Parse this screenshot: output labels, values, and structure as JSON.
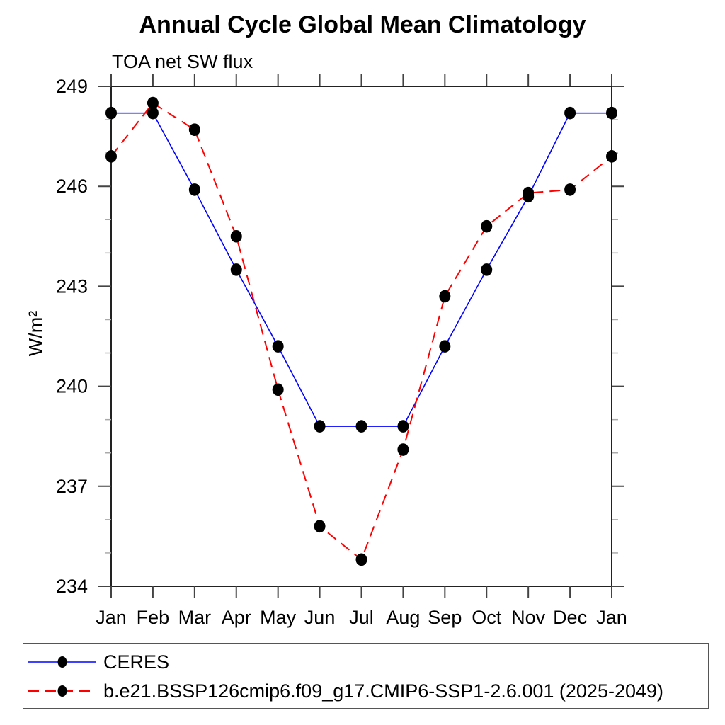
{
  "chart_data": {
    "type": "line",
    "title": "Annual Cycle Global Mean Climatology",
    "subtitle": "TOA net SW flux",
    "ylabel": "W/m²",
    "xlabel": "",
    "categories": [
      "Jan",
      "Feb",
      "Mar",
      "Apr",
      "May",
      "Jun",
      "Jul",
      "Aug",
      "Sep",
      "Oct",
      "Nov",
      "Dec",
      "Jan"
    ],
    "y_ticks": [
      234,
      237,
      240,
      243,
      246,
      249
    ],
    "y_minor_step": 1,
    "ylim": [
      234,
      249
    ],
    "grid": "off",
    "legend_position": "bottom-left-box",
    "series": [
      {
        "name": "CERES",
        "color": "#0000ff",
        "line_style": "solid",
        "marker": "filled-circle",
        "marker_color": "#000000",
        "values": [
          248.2,
          248.2,
          245.9,
          243.5,
          241.2,
          238.8,
          238.8,
          238.8,
          241.2,
          243.5,
          245.7,
          248.2,
          248.2
        ]
      },
      {
        "name": "b.e21.BSSP126cmip6.f09_g17.CMIP6-SSP1-2.6.001 (2025-2049)",
        "color": "#ff0000",
        "line_style": "dashed",
        "marker": "filled-circle",
        "marker_color": "#000000",
        "values": [
          246.9,
          248.5,
          247.7,
          244.5,
          239.9,
          235.8,
          234.8,
          238.1,
          242.7,
          244.8,
          245.8,
          245.9,
          246.9
        ]
      }
    ]
  }
}
